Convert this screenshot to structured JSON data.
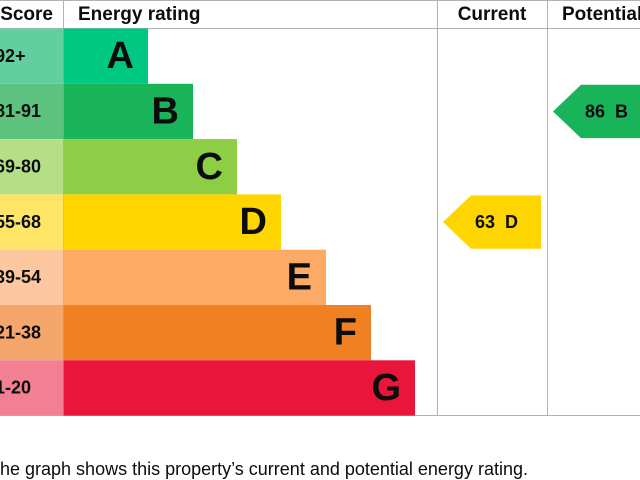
{
  "header": {
    "score": "Score",
    "rating": "Energy rating",
    "current": "Current",
    "potential": "Potential"
  },
  "bands": [
    {
      "score": "92+",
      "band": "A"
    },
    {
      "score": "81-91",
      "band": "B"
    },
    {
      "score": "69-80",
      "band": "C"
    },
    {
      "score": "55-68",
      "band": "D"
    },
    {
      "score": "39-54",
      "band": "E"
    },
    {
      "score": "21-38",
      "band": "F"
    },
    {
      "score": "1-20",
      "band": "G"
    }
  ],
  "current": {
    "score": "63",
    "band": "D"
  },
  "potential": {
    "score": "86",
    "band": "B"
  },
  "caption": "The graph shows this property’s current and potential energy rating."
}
